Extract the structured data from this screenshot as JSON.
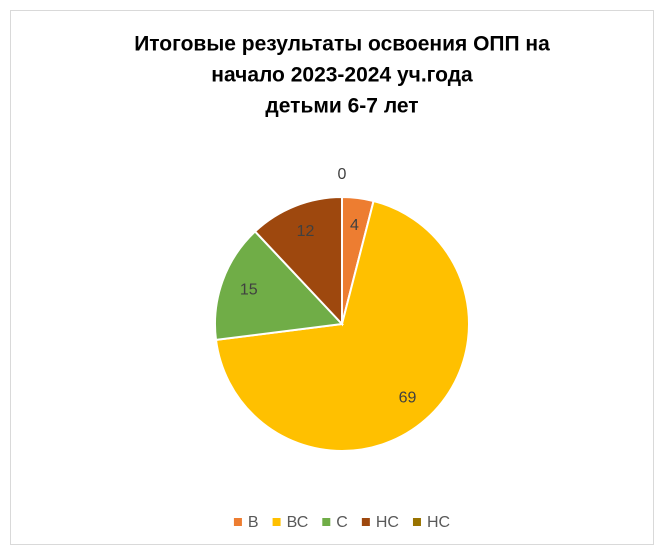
{
  "chart_data": {
    "type": "pie",
    "title": [
      "Итоговые результаты освоения ОПП на",
      "начало 2023-2024 уч.года",
      "детьми 6-7 лет"
    ],
    "categories": [
      "В",
      "ВС",
      "С",
      "НС",
      "НС"
    ],
    "values": [
      4,
      69,
      15,
      12,
      0
    ],
    "colors": [
      "#ED7D31",
      "#FFC000",
      "#70AD47",
      "#9E480E",
      "#997300"
    ],
    "legend": "bottom"
  }
}
